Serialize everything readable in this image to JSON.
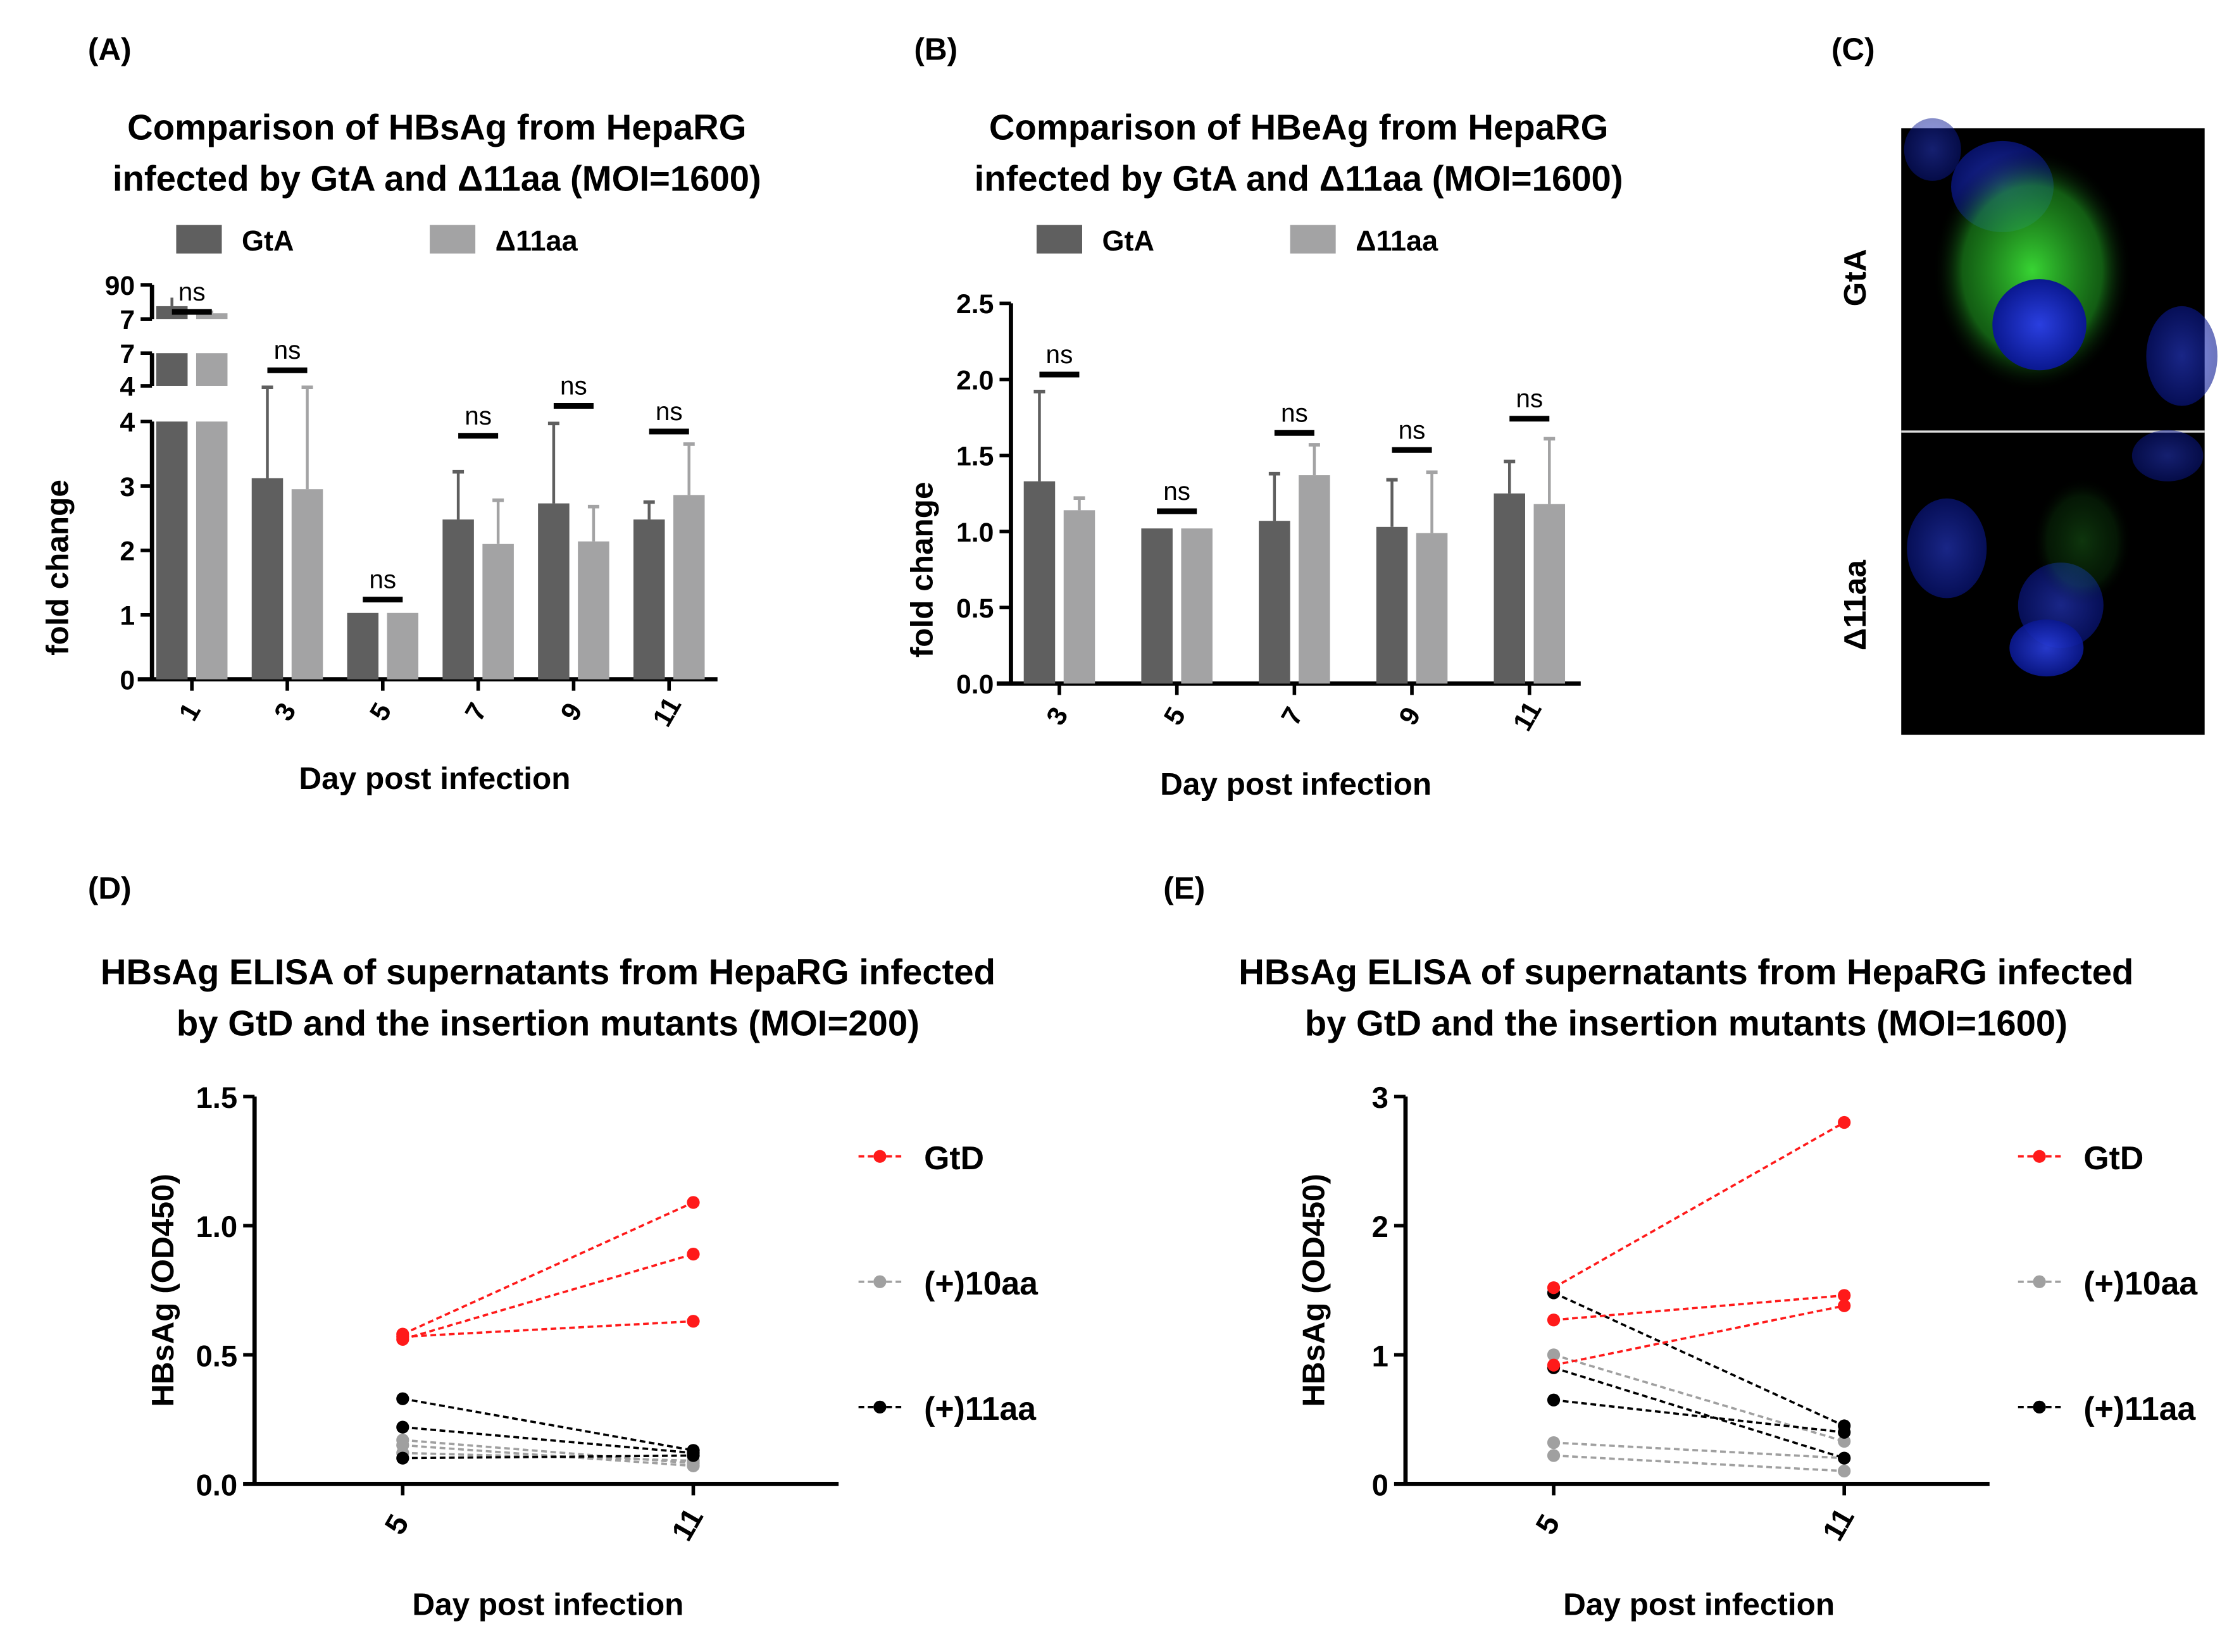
{
  "colors": {
    "gta": "#5f5f5f",
    "d11": "#a3a3a4",
    "gtd": "#ff1a1a",
    "p10": "#a0a0a0",
    "p11": "#000000",
    "nucleus": "#1a2fd0",
    "signal": "#2fd02a"
  },
  "chart_data": [
    {
      "panel": "(A)",
      "type": "bar",
      "title": [
        "Comparison of HBsAg from HepaRG",
        "infected by GtA and Δ11aa (MOI=1600)"
      ],
      "xlabel": "Day post infection",
      "ylabel": "fold change",
      "categories": [
        "1",
        "3",
        "5",
        "7",
        "9",
        "11"
      ],
      "yticks": [
        "0",
        "1",
        "2",
        "3",
        "4"
      ],
      "break_labels": [
        "4",
        "7",
        "7",
        "90"
      ],
      "ylim": [
        0,
        4
      ],
      "axis_break": true,
      "legend": [
        "GtA",
        "Δ11aa"
      ],
      "legend_position": "top",
      "series": [
        {
          "name": "GtA",
          "values": [
            80,
            3.12,
            1.03,
            2.48,
            2.73,
            2.48
          ],
          "err_upper": [
            88,
            4.3,
            null,
            3.22,
            3.97,
            2.75
          ]
        },
        {
          "name": "Δ11aa",
          "values": [
            75,
            2.95,
            1.03,
            2.1,
            2.14,
            2.86
          ],
          "err_upper": [
            78,
            4.3,
            null,
            2.78,
            2.68,
            3.65
          ]
        }
      ],
      "annotations": [
        "ns",
        "ns",
        "ns",
        "ns",
        "ns",
        "ns"
      ]
    },
    {
      "panel": "(B)",
      "type": "bar",
      "title": [
        "Comparison of HBeAg from HepaRG",
        "infected by GtA and Δ11aa (MOI=1600)"
      ],
      "xlabel": "Day post infection",
      "ylabel": "fold change",
      "categories": [
        "3",
        "5",
        "7",
        "9",
        "11"
      ],
      "yticks": [
        "0.0",
        "0.5",
        "1.0",
        "1.5",
        "2.0",
        "2.5"
      ],
      "ylim": [
        0,
        2.5
      ],
      "legend": [
        "GtA",
        "Δ11aa"
      ],
      "legend_position": "top",
      "series": [
        {
          "name": "GtA",
          "values": [
            1.33,
            1.02,
            1.07,
            1.03,
            1.25
          ],
          "err_upper": [
            1.92,
            null,
            1.38,
            1.34,
            1.46
          ]
        },
        {
          "name": "Δ11aa",
          "values": [
            1.14,
            1.02,
            1.37,
            0.99,
            1.18
          ],
          "err_upper": [
            1.22,
            null,
            1.57,
            1.39,
            1.61
          ]
        }
      ],
      "annotations": [
        "ns",
        "ns",
        "ns",
        "ns",
        "ns"
      ]
    },
    {
      "panel": "(D)",
      "type": "line",
      "title": [
        "HBsAg ELISA of supernatants from HepaRG infected",
        "by GtD and the insertion mutants (MOI=200)"
      ],
      "xlabel": "Day post infection",
      "ylabel": "HBsAg (OD450)",
      "x": [
        "5",
        "11"
      ],
      "yticks": [
        "0.0",
        "0.5",
        "1.0",
        "1.5"
      ],
      "ylim": [
        0,
        1.5
      ],
      "legend": [
        "GtD",
        "(+)10aa",
        "(+)11aa"
      ],
      "legend_position": "right",
      "series": [
        {
          "name": "GtD",
          "lines": [
            [
              0.58,
              1.09
            ],
            [
              0.56,
              0.89
            ],
            [
              0.57,
              0.63
            ]
          ]
        },
        {
          "name": "(+)10aa",
          "lines": [
            [
              0.17,
              0.08
            ],
            [
              0.15,
              0.07
            ],
            [
              0.12,
              0.09
            ]
          ]
        },
        {
          "name": "(+)11aa",
          "lines": [
            [
              0.33,
              0.13
            ],
            [
              0.22,
              0.12
            ],
            [
              0.1,
              0.11
            ]
          ]
        }
      ]
    },
    {
      "panel": "(E)",
      "type": "line",
      "title": [
        "HBsAg ELISA of supernatants from HepaRG infected",
        "by GtD and the insertion mutants (MOI=1600)"
      ],
      "xlabel": "Day post infection",
      "ylabel": "HBsAg (OD450)",
      "x": [
        "5",
        "11"
      ],
      "yticks": [
        "0",
        "1",
        "2",
        "3"
      ],
      "ylim": [
        0,
        3
      ],
      "legend": [
        "GtD",
        "(+)10aa",
        "(+)11aa"
      ],
      "legend_position": "right",
      "series": [
        {
          "name": "GtD",
          "lines": [
            [
              1.52,
              2.8
            ],
            [
              1.27,
              1.46
            ],
            [
              0.92,
              1.38
            ]
          ]
        },
        {
          "name": "(+)10aa",
          "lines": [
            [
              1.0,
              0.33
            ],
            [
              0.32,
              0.2
            ],
            [
              0.22,
              0.1
            ]
          ]
        },
        {
          "name": "(+)11aa",
          "lines": [
            [
              1.48,
              0.45
            ],
            [
              0.9,
              0.2
            ],
            [
              0.65,
              0.4
            ]
          ]
        }
      ]
    }
  ],
  "panel_c": {
    "label": "(C)",
    "rows": [
      "GtA",
      "Δ11aa"
    ]
  }
}
